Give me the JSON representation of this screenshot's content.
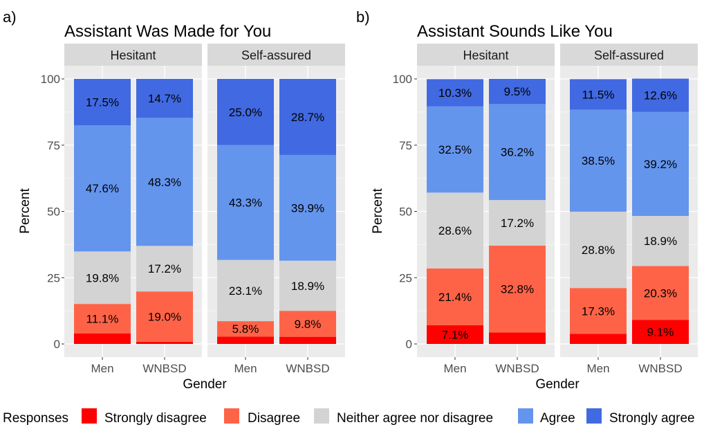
{
  "chart_data": [
    {
      "panel_label": "a)",
      "type": "bar",
      "stacked": true,
      "title": "Assistant Was Made for You",
      "xlabel": "Gender",
      "ylabel": "Percent",
      "ylim": [
        0,
        100
      ],
      "yticks": [
        0,
        25,
        50,
        75,
        100
      ],
      "facets": [
        {
          "strip": "Hesitant",
          "bars": [
            {
              "category": "Men",
              "values": [
                4.0,
                11.1,
                19.8,
                47.6,
                17.5
              ],
              "labels": [
                "",
                "11.1%",
                "19.8%",
                "47.6%",
                "17.5%"
              ]
            },
            {
              "category": "WNBSD",
              "values": [
                0.8,
                19.0,
                17.2,
                48.3,
                14.7
              ],
              "labels": [
                "",
                "19.0%",
                "17.2%",
                "48.3%",
                "14.7%"
              ]
            }
          ]
        },
        {
          "strip": "Self-assured",
          "bars": [
            {
              "category": "Men",
              "values": [
                2.8,
                5.8,
                23.1,
                43.3,
                25.0
              ],
              "labels": [
                "",
                "5.8%",
                "23.1%",
                "43.3%",
                "25.0%"
              ]
            },
            {
              "category": "WNBSD",
              "values": [
                2.7,
                9.8,
                18.9,
                39.9,
                28.7
              ],
              "labels": [
                "",
                "9.8%",
                "18.9%",
                "39.9%",
                "28.7%"
              ]
            }
          ]
        }
      ]
    },
    {
      "panel_label": "b)",
      "type": "bar",
      "stacked": true,
      "title": "Assistant Sounds Like You",
      "xlabel": "Gender",
      "ylabel": "Percent",
      "ylim": [
        0,
        100
      ],
      "yticks": [
        0,
        25,
        50,
        75,
        100
      ],
      "facets": [
        {
          "strip": "Hesitant",
          "bars": [
            {
              "category": "Men",
              "values": [
                7.1,
                21.4,
                28.6,
                32.5,
                10.3
              ],
              "labels": [
                "7.1%",
                "21.4%",
                "28.6%",
                "32.5%",
                "10.3%"
              ]
            },
            {
              "category": "WNBSD",
              "values": [
                4.3,
                32.8,
                17.2,
                36.2,
                9.5
              ],
              "labels": [
                "",
                "32.8%",
                "17.2%",
                "36.2%",
                "9.5%"
              ]
            }
          ]
        },
        {
          "strip": "Self-assured",
          "bars": [
            {
              "category": "Men",
              "values": [
                3.8,
                17.3,
                28.8,
                38.5,
                11.5
              ],
              "labels": [
                "",
                "17.3%",
                "28.8%",
                "38.5%",
                "11.5%"
              ]
            },
            {
              "category": "WNBSD",
              "values": [
                9.1,
                20.3,
                18.9,
                39.2,
                12.6
              ],
              "labels": [
                "9.1%",
                "20.3%",
                "18.9%",
                "39.2%",
                "12.6%"
              ]
            }
          ]
        }
      ]
    }
  ],
  "legend": {
    "title": "Responses",
    "items": [
      {
        "label": "Strongly disagree",
        "color": "#FF0000"
      },
      {
        "label": "Disagree",
        "color": "#FF6347"
      },
      {
        "label": "Neither agree nor disagree",
        "color": "#D3D3D3"
      },
      {
        "label": "Agree",
        "color": "#6495ED"
      },
      {
        "label": "Strongly agree",
        "color": "#4169E1"
      }
    ]
  },
  "colors": {
    "panel_bg": "#EBEBEB",
    "strip_bg": "#D9D9D9",
    "grid": "#FFFFFF"
  }
}
